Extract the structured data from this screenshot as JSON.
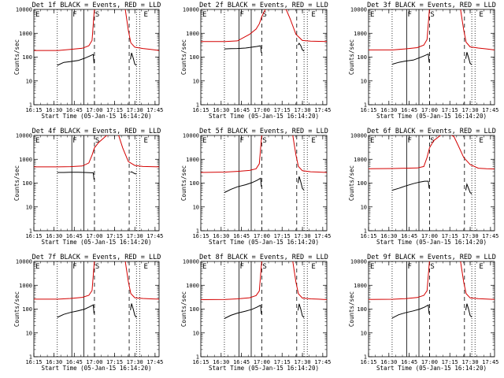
{
  "colors": {
    "events": "#000000",
    "lld": "#d40000"
  },
  "common": {
    "xlabel": "Start Time (05-Jan-15 16:14:20)",
    "ylabel": "Counts/sec",
    "xticks": [
      "16:15",
      "16:30",
      "16:45",
      "17:00",
      "17:15",
      "17:30",
      "17:45"
    ],
    "yticks": [
      "1",
      "10",
      "100",
      "1000",
      "10000"
    ],
    "marks": [
      "E",
      "F",
      "S",
      "E"
    ]
  },
  "chart_data": [
    {
      "type": "line",
      "title": "Det 1f BLACK = Events, RED = LLD",
      "vlines": {
        "dotted": [
          16.54,
          17.52,
          17.56
        ],
        "solid": [
          16.72,
          16.87
        ],
        "dashed": [
          17.0,
          17.43
        ]
      },
      "series": [
        {
          "name": "Events",
          "x": [
            16.54,
            16.62,
            16.7,
            16.8,
            16.88,
            16.94,
            16.985,
            16.995,
            17.4,
            17.445,
            17.46,
            17.48,
            17.5,
            17.52
          ],
          "y": [
            45,
            60,
            65,
            72,
            90,
            110,
            130,
            55,
            null,
            80,
            150,
            90,
            50,
            45
          ]
        },
        {
          "name": "LLD",
          "x": [
            16.25,
            16.55,
            16.7,
            16.85,
            16.93,
            16.97,
            17.0,
            17.38,
            17.42,
            17.45,
            17.5,
            17.6,
            17.7,
            17.8
          ],
          "y": [
            190,
            190,
            210,
            235,
            300,
            500,
            11000,
            11000,
            1300,
            400,
            260,
            230,
            210,
            190
          ]
        }
      ]
    },
    {
      "type": "line",
      "title": "Det 2f BLACK = Events, RED = LLD",
      "vlines": {
        "dotted": [
          16.54,
          17.52,
          17.56
        ],
        "solid": [
          16.72,
          16.87
        ],
        "dashed": [
          17.0,
          17.43
        ]
      },
      "series": [
        {
          "name": "Events",
          "x": [
            16.54,
            16.62,
            16.7,
            16.8,
            16.88,
            16.94,
            16.985,
            16.995,
            17.4,
            17.445,
            17.46,
            17.48,
            17.5,
            17.52
          ],
          "y": [
            220,
            225,
            230,
            240,
            260,
            280,
            300,
            150,
            null,
            320,
            380,
            300,
            200,
            180
          ]
        },
        {
          "name": "LLD",
          "x": [
            16.25,
            16.55,
            16.7,
            16.85,
            16.93,
            16.97,
            17.0,
            17.05,
            17.2,
            17.3,
            17.35,
            17.42,
            17.5,
            17.6,
            17.7,
            17.8
          ],
          "y": [
            450,
            450,
            480,
            900,
            1500,
            2500,
            5000,
            11000,
            11000,
            10000,
            4000,
            900,
            500,
            470,
            460,
            450
          ]
        }
      ]
    },
    {
      "type": "line",
      "title": "Det 3f BLACK = Events, RED = LLD",
      "vlines": {
        "dotted": [
          16.54,
          17.52,
          17.56
        ],
        "solid": [
          16.72,
          16.87
        ],
        "dashed": [
          17.0,
          17.43
        ]
      },
      "series": [
        {
          "name": "Events",
          "x": [
            16.54,
            16.62,
            16.7,
            16.8,
            16.88,
            16.94,
            16.985,
            16.995,
            17.4,
            17.445,
            17.46,
            17.48,
            17.5,
            17.52
          ],
          "y": [
            50,
            60,
            68,
            75,
            95,
            115,
            135,
            60,
            null,
            85,
            160,
            95,
            55,
            48
          ]
        },
        {
          "name": "LLD",
          "x": [
            16.25,
            16.55,
            16.7,
            16.85,
            16.93,
            16.97,
            17.0,
            17.38,
            17.42,
            17.45,
            17.5,
            17.6,
            17.7,
            17.8
          ],
          "y": [
            200,
            200,
            220,
            250,
            320,
            550,
            11000,
            11000,
            1400,
            420,
            270,
            240,
            220,
            200
          ]
        }
      ]
    },
    {
      "type": "line",
      "title": "Det 4f BLACK = Events, RED = LLD",
      "vlines": {
        "dotted": [
          16.54,
          17.52,
          17.56
        ],
        "solid": [
          16.72,
          16.87
        ],
        "dashed": [
          17.0,
          17.43
        ]
      },
      "series": [
        {
          "name": "Events",
          "x": [
            16.54,
            16.62,
            16.7,
            16.8,
            16.88,
            16.94,
            16.985,
            16.995,
            17.4,
            17.445,
            17.46,
            17.48,
            17.5,
            17.52
          ],
          "y": [
            280,
            280,
            285,
            285,
            280,
            275,
            270,
            140,
            null,
            280,
            300,
            270,
            250,
            240
          ]
        },
        {
          "name": "LLD",
          "x": [
            16.25,
            16.55,
            16.7,
            16.85,
            16.93,
            16.97,
            17.0,
            17.05,
            17.15,
            17.25,
            17.3,
            17.35,
            17.42,
            17.5,
            17.6,
            17.7,
            17.8
          ],
          "y": [
            480,
            480,
            490,
            520,
            700,
            1500,
            3000,
            5000,
            10000,
            11000,
            10000,
            3000,
            800,
            550,
            500,
            490,
            480
          ]
        }
      ]
    },
    {
      "type": "line",
      "title": "Det 5f BLACK = Events, RED = LLD",
      "vlines": {
        "dotted": [
          16.54,
          17.52,
          17.56
        ],
        "solid": [
          16.72,
          16.87
        ],
        "dashed": [
          17.0,
          17.43
        ]
      },
      "series": [
        {
          "name": "Events",
          "x": [
            16.54,
            16.62,
            16.7,
            16.8,
            16.88,
            16.94,
            16.985,
            16.995,
            17.4,
            17.445,
            17.46,
            17.48,
            17.5,
            17.52
          ],
          "y": [
            40,
            55,
            70,
            85,
            105,
            130,
            160,
            70,
            null,
            100,
            190,
            110,
            60,
            50
          ]
        },
        {
          "name": "LLD",
          "x": [
            16.25,
            16.55,
            16.7,
            16.85,
            16.93,
            16.97,
            17.0,
            17.38,
            17.42,
            17.45,
            17.5,
            17.6,
            17.7,
            17.8
          ],
          "y": [
            280,
            290,
            310,
            340,
            400,
            650,
            11000,
            11000,
            1500,
            500,
            330,
            300,
            290,
            280
          ]
        }
      ]
    },
    {
      "type": "line",
      "title": "Det 6f BLACK = Events, RED = LLD",
      "vlines": {
        "dotted": [
          16.54,
          17.52,
          17.56
        ],
        "solid": [
          16.72,
          16.87
        ],
        "dashed": [
          17.0,
          17.43
        ]
      },
      "series": [
        {
          "name": "Events",
          "x": [
            16.54,
            16.62,
            16.7,
            16.8,
            16.88,
            16.94,
            16.985,
            16.995,
            17.4,
            17.445,
            17.46,
            17.48,
            17.5,
            17.52
          ],
          "y": [
            50,
            60,
            75,
            95,
            110,
            120,
            120,
            60,
            null,
            50,
            90,
            60,
            40,
            35
          ]
        },
        {
          "name": "LLD",
          "x": [
            16.25,
            16.55,
            16.7,
            16.85,
            16.93,
            16.97,
            17.0,
            17.05,
            17.15,
            17.25,
            17.3,
            17.35,
            17.42,
            17.5,
            17.6,
            17.7,
            17.8
          ],
          "y": [
            400,
            410,
            420,
            430,
            500,
            1200,
            3000,
            6000,
            11000,
            11000,
            9000,
            4000,
            1200,
            600,
            420,
            400,
            390
          ]
        }
      ]
    },
    {
      "type": "line",
      "title": "Det 7f BLACK = Events, RED = LLD",
      "vlines": {
        "dotted": [
          16.54,
          17.52,
          17.56
        ],
        "solid": [
          16.72,
          16.87
        ],
        "dashed": [
          17.0,
          17.43
        ]
      },
      "series": [
        {
          "name": "Events",
          "x": [
            16.54,
            16.62,
            16.7,
            16.8,
            16.88,
            16.94,
            16.985,
            16.995,
            17.4,
            17.445,
            17.46,
            17.48,
            17.5,
            17.52
          ],
          "y": [
            45,
            60,
            72,
            85,
            100,
            125,
            150,
            65,
            null,
            90,
            170,
            100,
            55,
            45
          ]
        },
        {
          "name": "LLD",
          "x": [
            16.25,
            16.55,
            16.7,
            16.85,
            16.93,
            16.97,
            17.0,
            17.38,
            17.42,
            17.45,
            17.5,
            17.6,
            17.7,
            17.8
          ],
          "y": [
            260,
            260,
            280,
            310,
            380,
            600,
            11000,
            11000,
            1400,
            450,
            300,
            280,
            270,
            260
          ]
        }
      ]
    },
    {
      "type": "line",
      "title": "Det 8f BLACK = Events, RED = LLD",
      "vlines": {
        "dotted": [
          16.54,
          17.52,
          17.56
        ],
        "solid": [
          16.72,
          16.87
        ],
        "dashed": [
          17.0,
          17.43
        ]
      },
      "series": [
        {
          "name": "Events",
          "x": [
            16.54,
            16.62,
            16.7,
            16.8,
            16.88,
            16.94,
            16.985,
            16.995,
            17.4,
            17.445,
            17.46,
            17.48,
            17.5,
            17.52
          ],
          "y": [
            40,
            55,
            68,
            82,
            98,
            120,
            145,
            62,
            null,
            88,
            165,
            98,
            52,
            44
          ]
        },
        {
          "name": "LLD",
          "x": [
            16.25,
            16.55,
            16.7,
            16.85,
            16.93,
            16.97,
            17.0,
            17.38,
            17.42,
            17.45,
            17.5,
            17.6,
            17.7,
            17.8
          ],
          "y": [
            250,
            255,
            270,
            300,
            370,
            580,
            11000,
            11000,
            1350,
            440,
            290,
            270,
            260,
            250
          ]
        }
      ]
    },
    {
      "type": "line",
      "title": "Det 9f BLACK = Events, RED = LLD",
      "vlines": {
        "dotted": [
          16.54,
          17.52,
          17.56
        ],
        "solid": [
          16.72,
          16.87
        ],
        "dashed": [
          17.0,
          17.43
        ]
      },
      "series": [
        {
          "name": "Events",
          "x": [
            16.54,
            16.62,
            16.7,
            16.8,
            16.88,
            16.94,
            16.985,
            16.995,
            17.4,
            17.445,
            17.46,
            17.48,
            17.5,
            17.52
          ],
          "y": [
            42,
            58,
            70,
            84,
            100,
            122,
            148,
            64,
            null,
            90,
            168,
            100,
            54,
            46
          ]
        },
        {
          "name": "LLD",
          "x": [
            16.25,
            16.55,
            16.7,
            16.85,
            16.93,
            16.97,
            17.0,
            17.38,
            17.42,
            17.45,
            17.5,
            17.6,
            17.7,
            17.8
          ],
          "y": [
            255,
            258,
            275,
            305,
            375,
            590,
            11000,
            11000,
            1380,
            445,
            295,
            275,
            265,
            255
          ]
        }
      ]
    }
  ]
}
